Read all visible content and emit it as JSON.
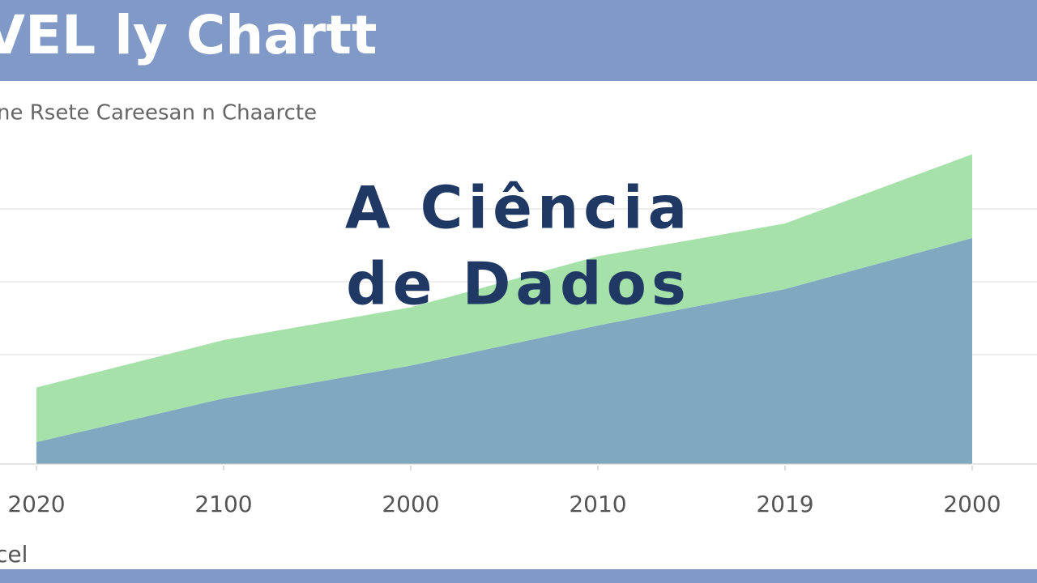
{
  "chart_data": {
    "type": "area",
    "title": "VEL ly Chartt",
    "subtitle": "ne Rsete Careesan n Chaarcte",
    "annotation": [
      "A Ciência",
      "de Dados"
    ],
    "footer": "cel",
    "categories": [
      "2020",
      "2100",
      "2000",
      "2010",
      "2019",
      "2000"
    ],
    "series": [
      {
        "color": "#80a9c1",
        "values": [
          6,
          18,
          27,
          38,
          48,
          62
        ]
      },
      {
        "color": "#a7e1aa",
        "values": [
          15,
          16,
          16,
          19,
          18,
          23
        ]
      }
    ],
    "stacked": true,
    "ylim": [
      0,
      90
    ],
    "yticks": [
      30,
      50,
      70
    ],
    "grid": true
  }
}
